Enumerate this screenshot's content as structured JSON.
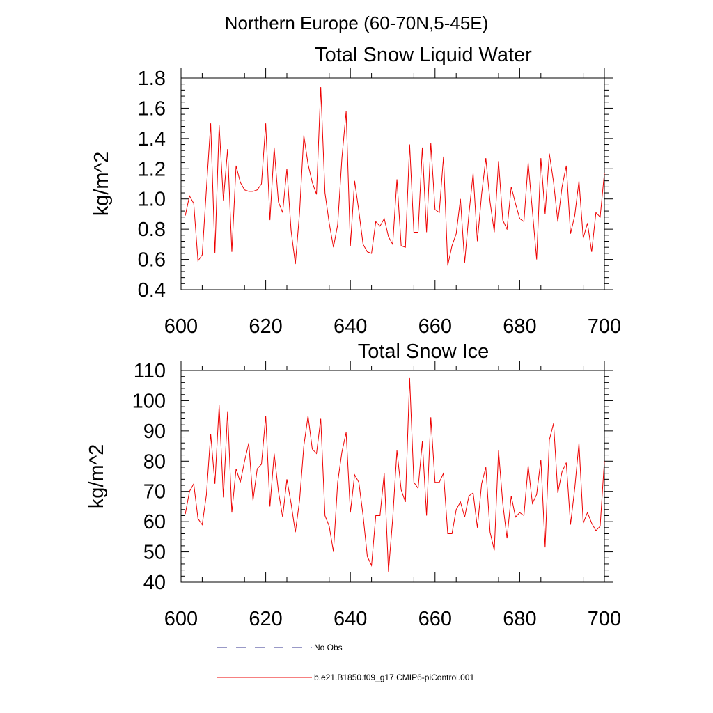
{
  "suptitle": "Northern Europe (60-70N,5-45E)",
  "colors": {
    "model": "#ee0000",
    "obs": "#33338f"
  },
  "legend": {
    "obs_label": "No Obs",
    "model_label": "b.e21.B1850.f09_g17.CMIP6-piControl.001"
  },
  "chart_data": [
    {
      "type": "line",
      "title": "Total Snow Liquid Water",
      "ylabel": "kg/m^2",
      "xlabel": "",
      "xlim": [
        600,
        700
      ],
      "ylim": [
        0.4,
        1.8
      ],
      "x_ticks": [
        600,
        620,
        640,
        660,
        680,
        700
      ],
      "y_ticks": [
        "0.4",
        "0.6",
        "0.8",
        "1.0",
        "1.2",
        "1.4",
        "1.6",
        "1.8"
      ],
      "x_start": 601,
      "series": [
        {
          "name": "b.e21.B1850.f09_g17.CMIP6-piControl.001",
          "values": [
            0.89,
            1.02,
            0.97,
            0.59,
            0.63,
            1.07,
            1.5,
            0.64,
            1.49,
            0.99,
            1.33,
            0.65,
            1.22,
            1.11,
            1.06,
            1.05,
            1.05,
            1.06,
            1.1,
            1.5,
            0.86,
            1.34,
            0.98,
            0.91,
            1.2,
            0.79,
            0.57,
            0.91,
            1.42,
            1.23,
            1.11,
            1.03,
            1.74,
            1.04,
            0.84,
            0.68,
            0.83,
            1.27,
            1.58,
            0.69,
            1.12,
            0.92,
            0.7,
            0.65,
            0.64,
            0.85,
            0.82,
            0.87,
            0.75,
            0.7,
            1.13,
            0.69,
            0.68,
            1.36,
            0.78,
            0.78,
            1.34,
            0.78,
            1.37,
            0.93,
            0.91,
            1.28,
            0.56,
            0.69,
            0.77,
            1.0,
            0.58,
            0.9,
            1.17,
            0.72,
            1.03,
            1.27,
            0.98,
            0.78,
            1.25,
            0.86,
            0.8,
            1.08,
            0.97,
            0.87,
            0.85,
            1.24,
            0.92,
            0.6,
            1.27,
            0.9,
            1.3,
            1.11,
            0.85,
            1.08,
            1.22,
            0.77,
            0.89,
            1.12,
            0.74,
            0.84,
            0.65,
            0.91,
            0.88,
            1.17
          ]
        }
      ]
    },
    {
      "type": "line",
      "title": "Total Snow Ice",
      "ylabel": "kg/m^2",
      "xlabel": "",
      "xlim": [
        600,
        700
      ],
      "ylim": [
        40,
        110
      ],
      "x_ticks": [
        600,
        620,
        640,
        660,
        680,
        700
      ],
      "y_ticks": [
        "40",
        "50",
        "60",
        "70",
        "80",
        "90",
        "100",
        "110"
      ],
      "x_start": 601,
      "series": [
        {
          "name": "b.e21.B1850.f09_g17.CMIP6-piControl.001",
          "values": [
            62.5,
            70.0,
            72.5,
            61.0,
            59.0,
            69.0,
            89.0,
            72.5,
            98.5,
            68.0,
            96.5,
            63.0,
            77.5,
            73.0,
            80.0,
            86.0,
            67.0,
            77.5,
            79.0,
            95.0,
            65.0,
            82.5,
            70.0,
            61.5,
            74.0,
            66.0,
            56.5,
            67.0,
            85.0,
            95.0,
            84.0,
            82.5,
            94.0,
            62.0,
            58.5,
            50.0,
            73.0,
            83.0,
            89.5,
            63.0,
            75.5,
            73.0,
            62.0,
            48.5,
            45.5,
            62.0,
            62.0,
            76.0,
            43.5,
            61.0,
            83.5,
            70.5,
            66.5,
            107.5,
            73.0,
            71.0,
            86.5,
            62.0,
            94.5,
            73.0,
            73.0,
            76.0,
            56.0,
            56.0,
            64.0,
            66.5,
            61.5,
            68.5,
            69.5,
            58.0,
            72.5,
            78.0,
            56.5,
            50.5,
            83.5,
            66.0,
            54.5,
            68.5,
            61.5,
            63.0,
            62.0,
            78.5,
            66.0,
            69.0,
            80.5,
            51.5,
            87.0,
            92.5,
            69.5,
            76.5,
            79.5,
            59.0,
            71.0,
            86.0,
            59.5,
            63.0,
            59.5,
            57.0,
            58.5,
            80.0
          ]
        }
      ]
    }
  ]
}
